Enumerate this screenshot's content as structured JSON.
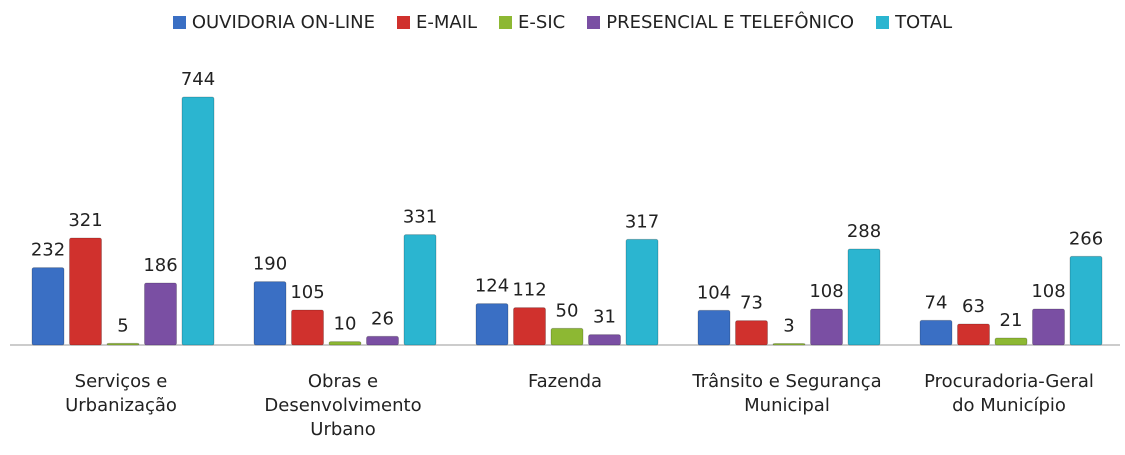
{
  "chart_data": {
    "type": "bar",
    "categories": [
      "Serviços e Urbanização",
      "Obras e Desenvolvimento Urbano",
      "Fazenda",
      "Trânsito e Segurança Municipal",
      "Procuradoria-Geral do Município"
    ],
    "series": [
      {
        "name": "OUVIDORIA ON-LINE",
        "color": "#3a6fc4",
        "values": [
          232,
          190,
          124,
          104,
          74
        ]
      },
      {
        "name": "E-MAIL",
        "color": "#d0312d",
        "values": [
          321,
          105,
          112,
          73,
          63
        ]
      },
      {
        "name": "E-SIC",
        "color": "#8db833",
        "values": [
          5,
          10,
          50,
          3,
          21
        ]
      },
      {
        "name": "PRESENCIAL E TELEFÔNICO",
        "color": "#7a4fa3",
        "values": [
          186,
          26,
          31,
          108,
          108
        ]
      },
      {
        "name": "TOTAL",
        "color": "#2bb5d0",
        "values": [
          744,
          331,
          317,
          288,
          266
        ]
      }
    ],
    "legend": "top"
  }
}
